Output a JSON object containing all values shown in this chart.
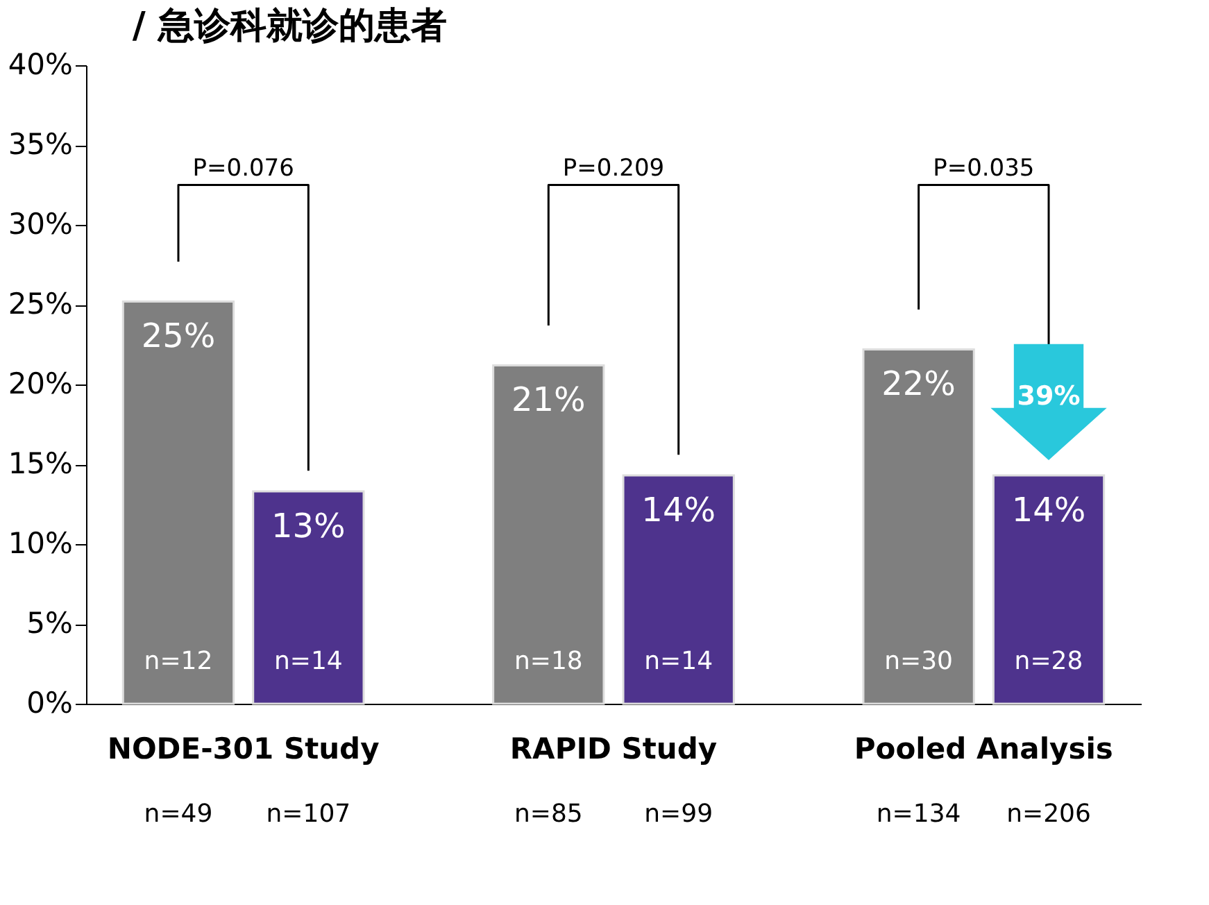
{
  "chart_data": {
    "type": "bar",
    "title": "/ 急诊科就诊的患者",
    "categories": [
      "NODE-301 Study",
      "RAPID Study",
      "Pooled Analysis"
    ],
    "series": [
      {
        "color": "#7f7f7f",
        "values": [
          25.2,
          21.2,
          22.2
        ],
        "value_labels": [
          "25%",
          "21%",
          "22%"
        ]
      },
      {
        "color": "#4e338d",
        "values": [
          13.3,
          14.3,
          14.3
        ],
        "value_labels": [
          "13%",
          "14%",
          "14%"
        ]
      }
    ],
    "ylim": [
      0,
      40
    ],
    "yticks": [
      {
        "value": 0,
        "label": "0%"
      },
      {
        "value": 5,
        "label": "5%"
      },
      {
        "value": 10,
        "label": "10%"
      },
      {
        "value": 15,
        "label": "15%"
      },
      {
        "value": 20,
        "label": "20%"
      },
      {
        "value": 25,
        "label": "25%"
      },
      {
        "value": 30,
        "label": "30%"
      },
      {
        "value": 35,
        "label": "35%"
      },
      {
        "value": 40,
        "label": "40%"
      }
    ],
    "grid": false,
    "legend": false,
    "annotations": [
      "n=12",
      "n=14",
      "n=18",
      "n=14",
      "n=30",
      "n=28",
      "n=49",
      "n=107",
      "n=85",
      "n=99",
      "n=134",
      "n=206",
      "P=0.076",
      "P=0.209",
      "P=0.035",
      "39%"
    ]
  }
}
